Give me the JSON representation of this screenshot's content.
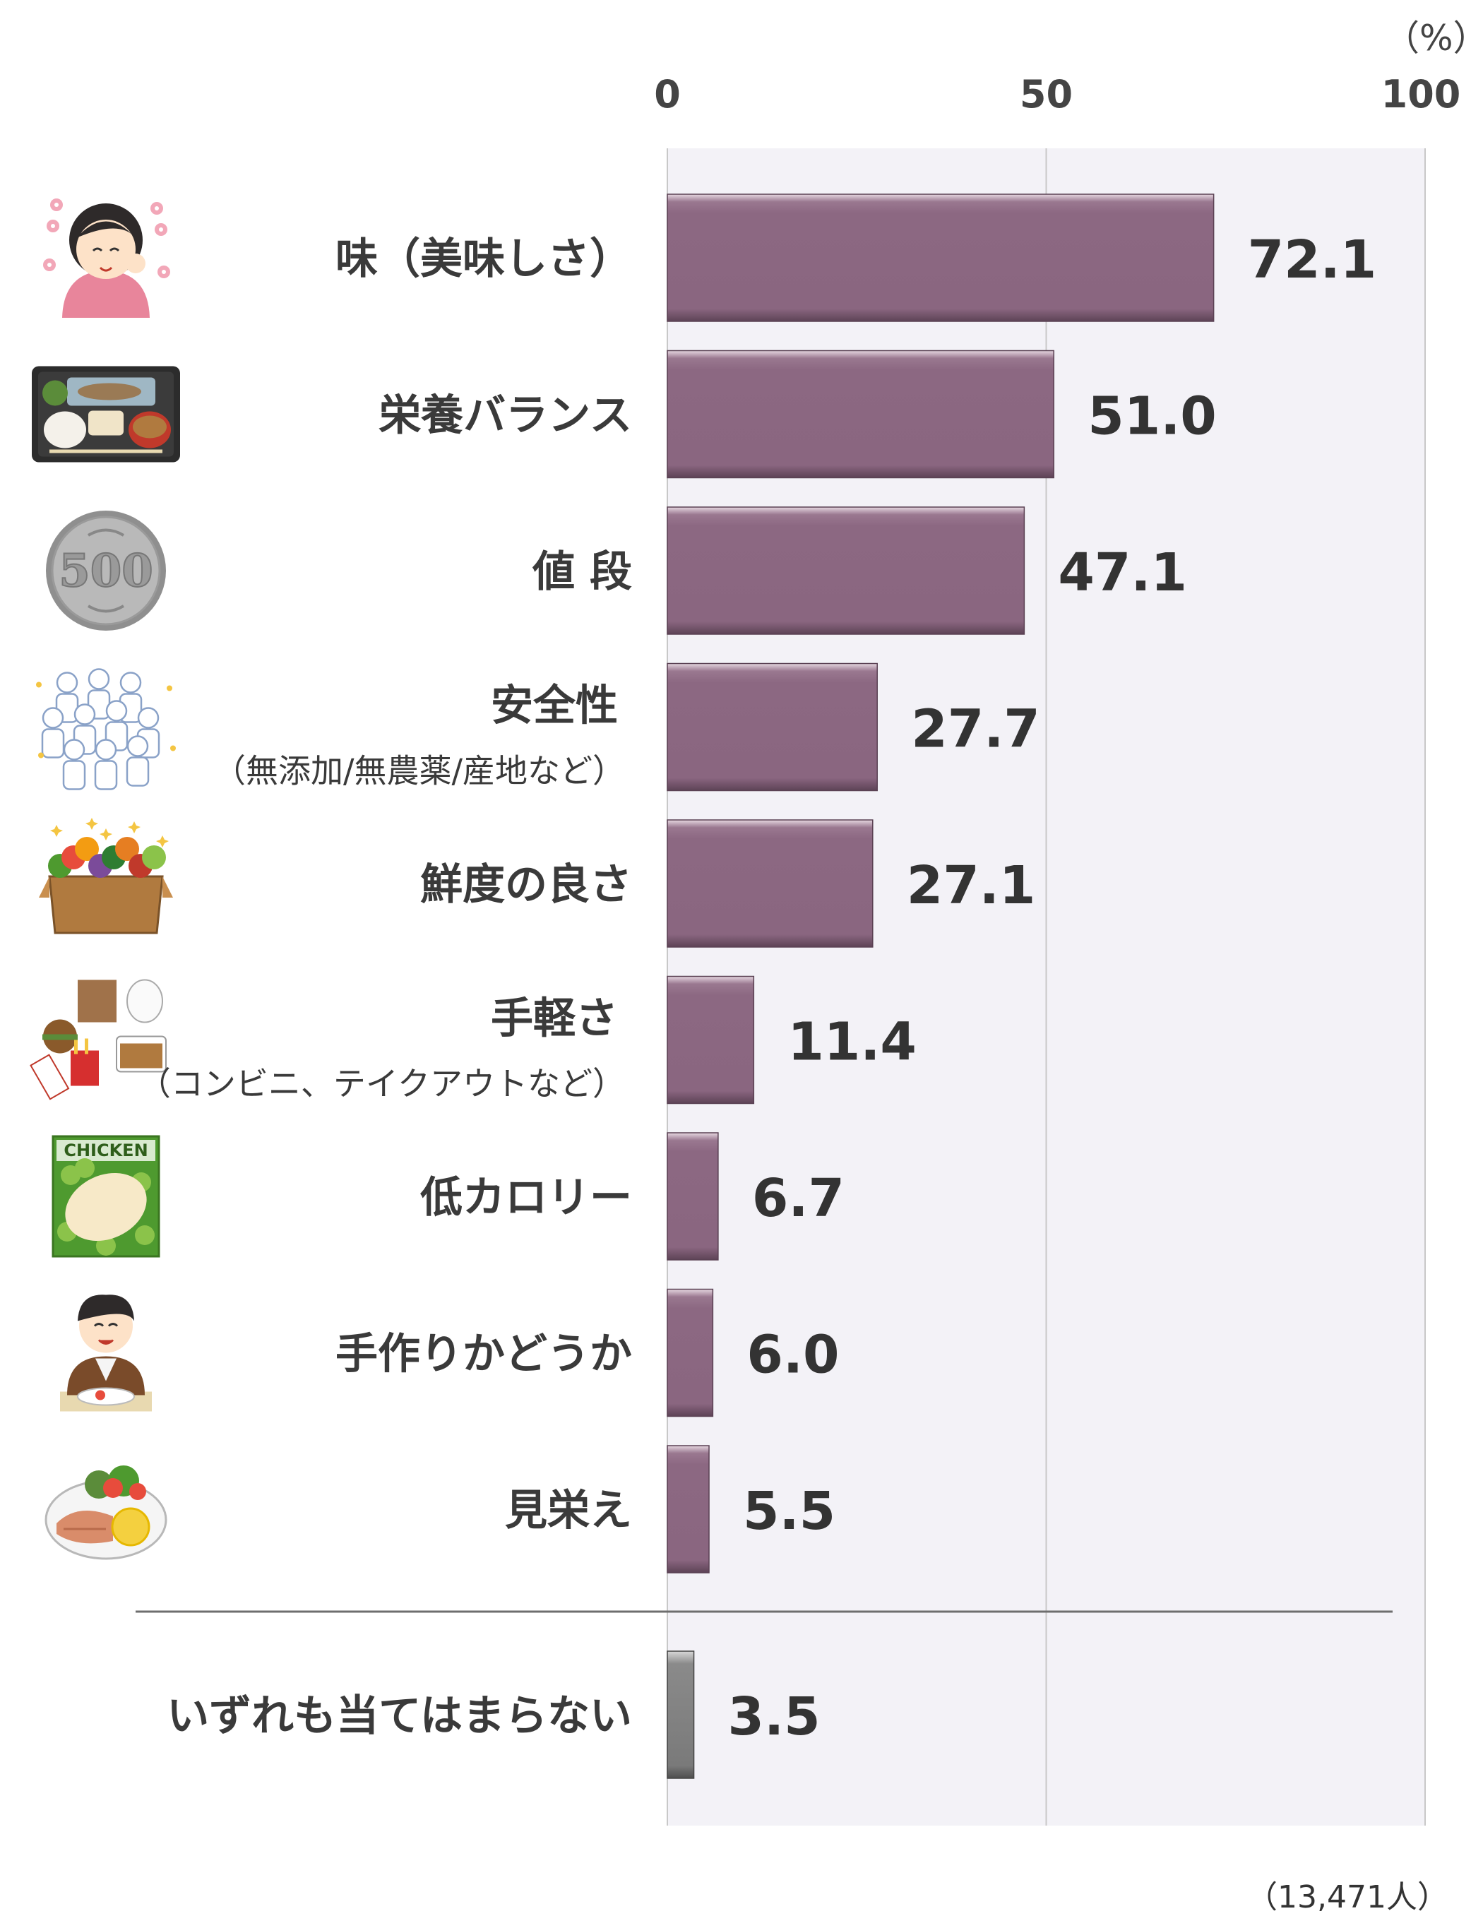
{
  "chart_data": {
    "type": "bar",
    "orientation": "horizontal",
    "unit": "（%）",
    "xlim": [
      0,
      100
    ],
    "ticks": [
      "0",
      "50",
      "100"
    ],
    "grid": true,
    "categories": [
      {
        "label": "味（美味しさ）",
        "sub": "",
        "value": 72.1,
        "value_text": "72.1",
        "icon": "woman-eating-icon"
      },
      {
        "label": "栄養バランス",
        "sub": "",
        "value": 51.0,
        "value_text": "51.0",
        "icon": "meal-tray-icon"
      },
      {
        "label": "値 段",
        "sub": "",
        "value": 47.1,
        "value_text": "47.1",
        "icon": "coin-500-yen-icon"
      },
      {
        "label": "安全性",
        "sub": "（無添加/無農薬/産地など）",
        "value": 27.7,
        "value_text": "27.7",
        "icon": "people-group-icon"
      },
      {
        "label": "鮮度の良さ",
        "sub": "",
        "value": 27.1,
        "value_text": "27.1",
        "icon": "vegetable-box-icon"
      },
      {
        "label": "手軽さ",
        "sub": "（コンビニ、テイクアウトなど）",
        "value": 11.4,
        "value_text": "11.4",
        "icon": "takeout-food-icon"
      },
      {
        "label": "低カロリー",
        "sub": "",
        "value": 6.7,
        "value_text": "6.7",
        "icon": "chicken-pack-icon"
      },
      {
        "label": "手作りかどうか",
        "sub": "",
        "value": 6.0,
        "value_text": "6.0",
        "icon": "man-eating-icon"
      },
      {
        "label": "見栄え",
        "sub": "",
        "value": 5.5,
        "value_text": "5.5",
        "icon": "fish-plate-icon"
      }
    ],
    "other": {
      "label": "いずれも当てはまらない",
      "value": 3.5,
      "value_text": "3.5"
    },
    "colors": {
      "bar": "#8c6882",
      "bar_top": "#d9c6d3",
      "bar_other": "#808080",
      "plot_bg": "#f3f2f7",
      "grid": "#c8c8c8"
    }
  },
  "sample_note": "（13,471人）",
  "icon_text": {
    "chicken": "CHICKEN",
    "coin": "500"
  }
}
